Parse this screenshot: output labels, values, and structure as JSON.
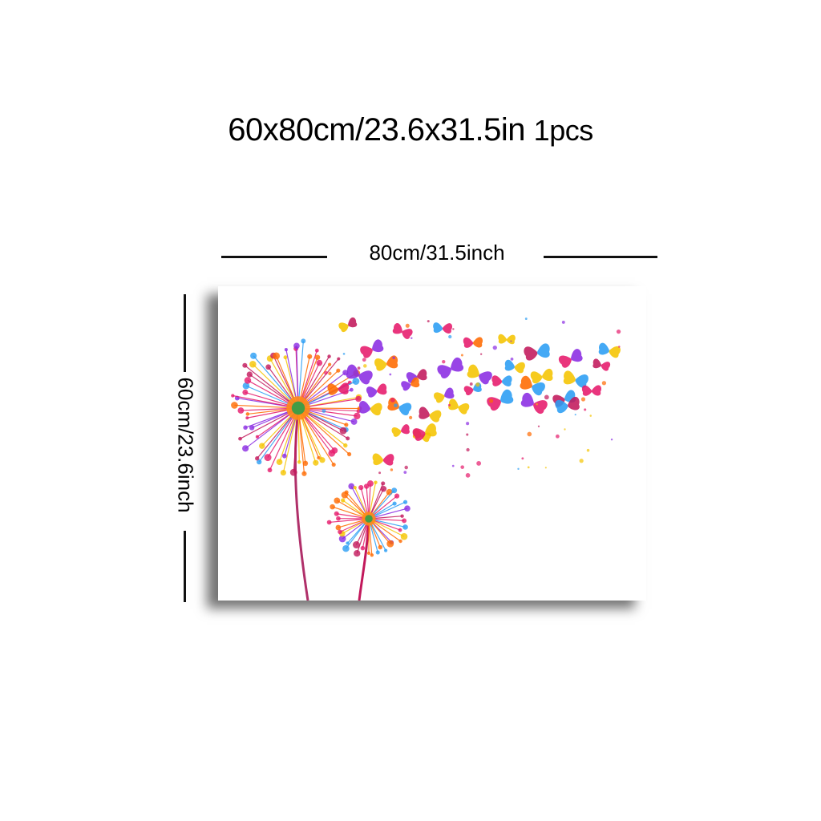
{
  "header": {
    "size_text": "60x80cm/23.6x31.5in",
    "quantity_text": "1pcs"
  },
  "dimensions": {
    "width_label": "80cm/31.5inch",
    "height_label": "60cm/23.6inch"
  },
  "artwork": {
    "subject": "dandelions-and-butterflies",
    "colors": [
      "#e6196b",
      "#8a2be2",
      "#ff6a00",
      "#2a9df4",
      "#f5c400",
      "#c2185b"
    ]
  }
}
